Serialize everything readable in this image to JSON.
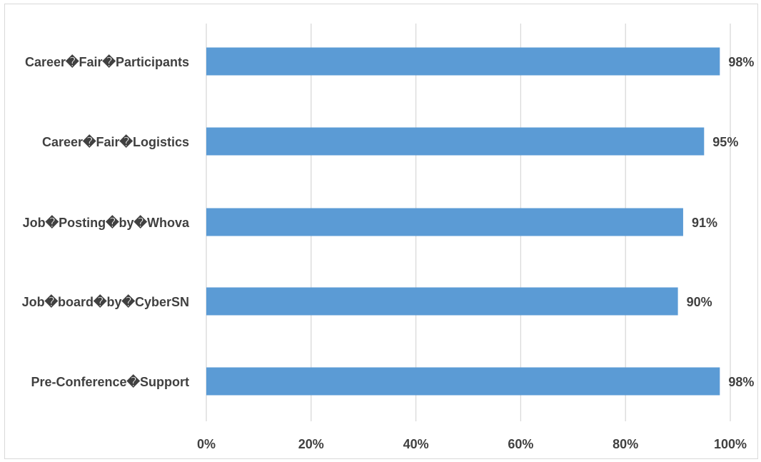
{
  "chart_data": {
    "type": "bar",
    "orientation": "horizontal",
    "title": "",
    "xlabel": "",
    "ylabel": "",
    "categories": [
      "Career�Fair�Participants",
      "Career�Fair�Logistics",
      "Job�Posting�by�Whova",
      "Job�board�by�CyberSN",
      "Pre-Conference�Support"
    ],
    "values": [
      98,
      95,
      91,
      90,
      98
    ],
    "data_labels": [
      "98%",
      "95%",
      "91%",
      "90%",
      "98%"
    ],
    "xlim": [
      0,
      100
    ],
    "x_ticks": [
      0,
      20,
      40,
      60,
      80,
      100
    ],
    "x_tick_labels": [
      "0%",
      "20%",
      "40%",
      "60%",
      "80%",
      "100%"
    ],
    "grid": true,
    "legend": "none",
    "bar_color": "#5b9bd5",
    "grid_color": "#d9d9d9",
    "text_color": "#404040"
  }
}
